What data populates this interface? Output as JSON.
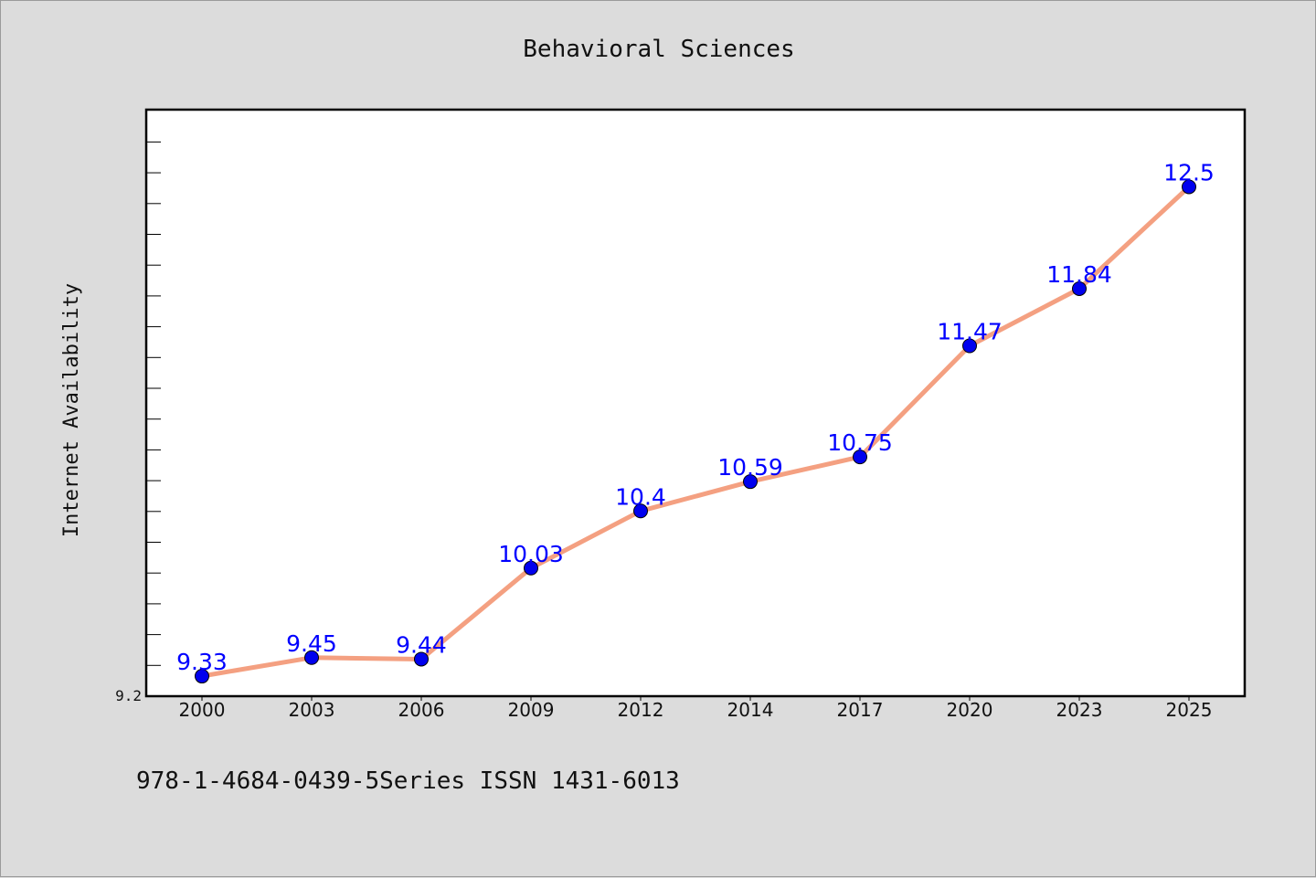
{
  "chart_data": {
    "type": "line",
    "title": "Behavioral Sciences",
    "xlabel": "",
    "ylabel": "Internet Availability",
    "categories": [
      "2000",
      "2003",
      "2006",
      "2009",
      "2012",
      "2014",
      "2017",
      "2020",
      "2023",
      "2025"
    ],
    "series": [
      {
        "values": [
          9.33,
          9.45,
          9.44,
          10.03,
          10.4,
          10.59,
          10.75,
          11.47,
          11.84,
          12.5
        ]
      }
    ],
    "data_labels": [
      "9.33",
      "9.45",
      "9.44",
      "10.03",
      "10.4",
      "10.59",
      "10.75",
      "11.47",
      "11.84",
      "12.5"
    ],
    "ylim": [
      9.2,
      13.0
    ],
    "y_tick_label": "9.2",
    "grid": false,
    "legend": "none",
    "line_color": "#f4a081",
    "marker_color": "#0000ee",
    "label_color": "#0000ff"
  },
  "footer": {
    "text": "978-1-4684-0439-5Series ISSN 1431-6013"
  }
}
